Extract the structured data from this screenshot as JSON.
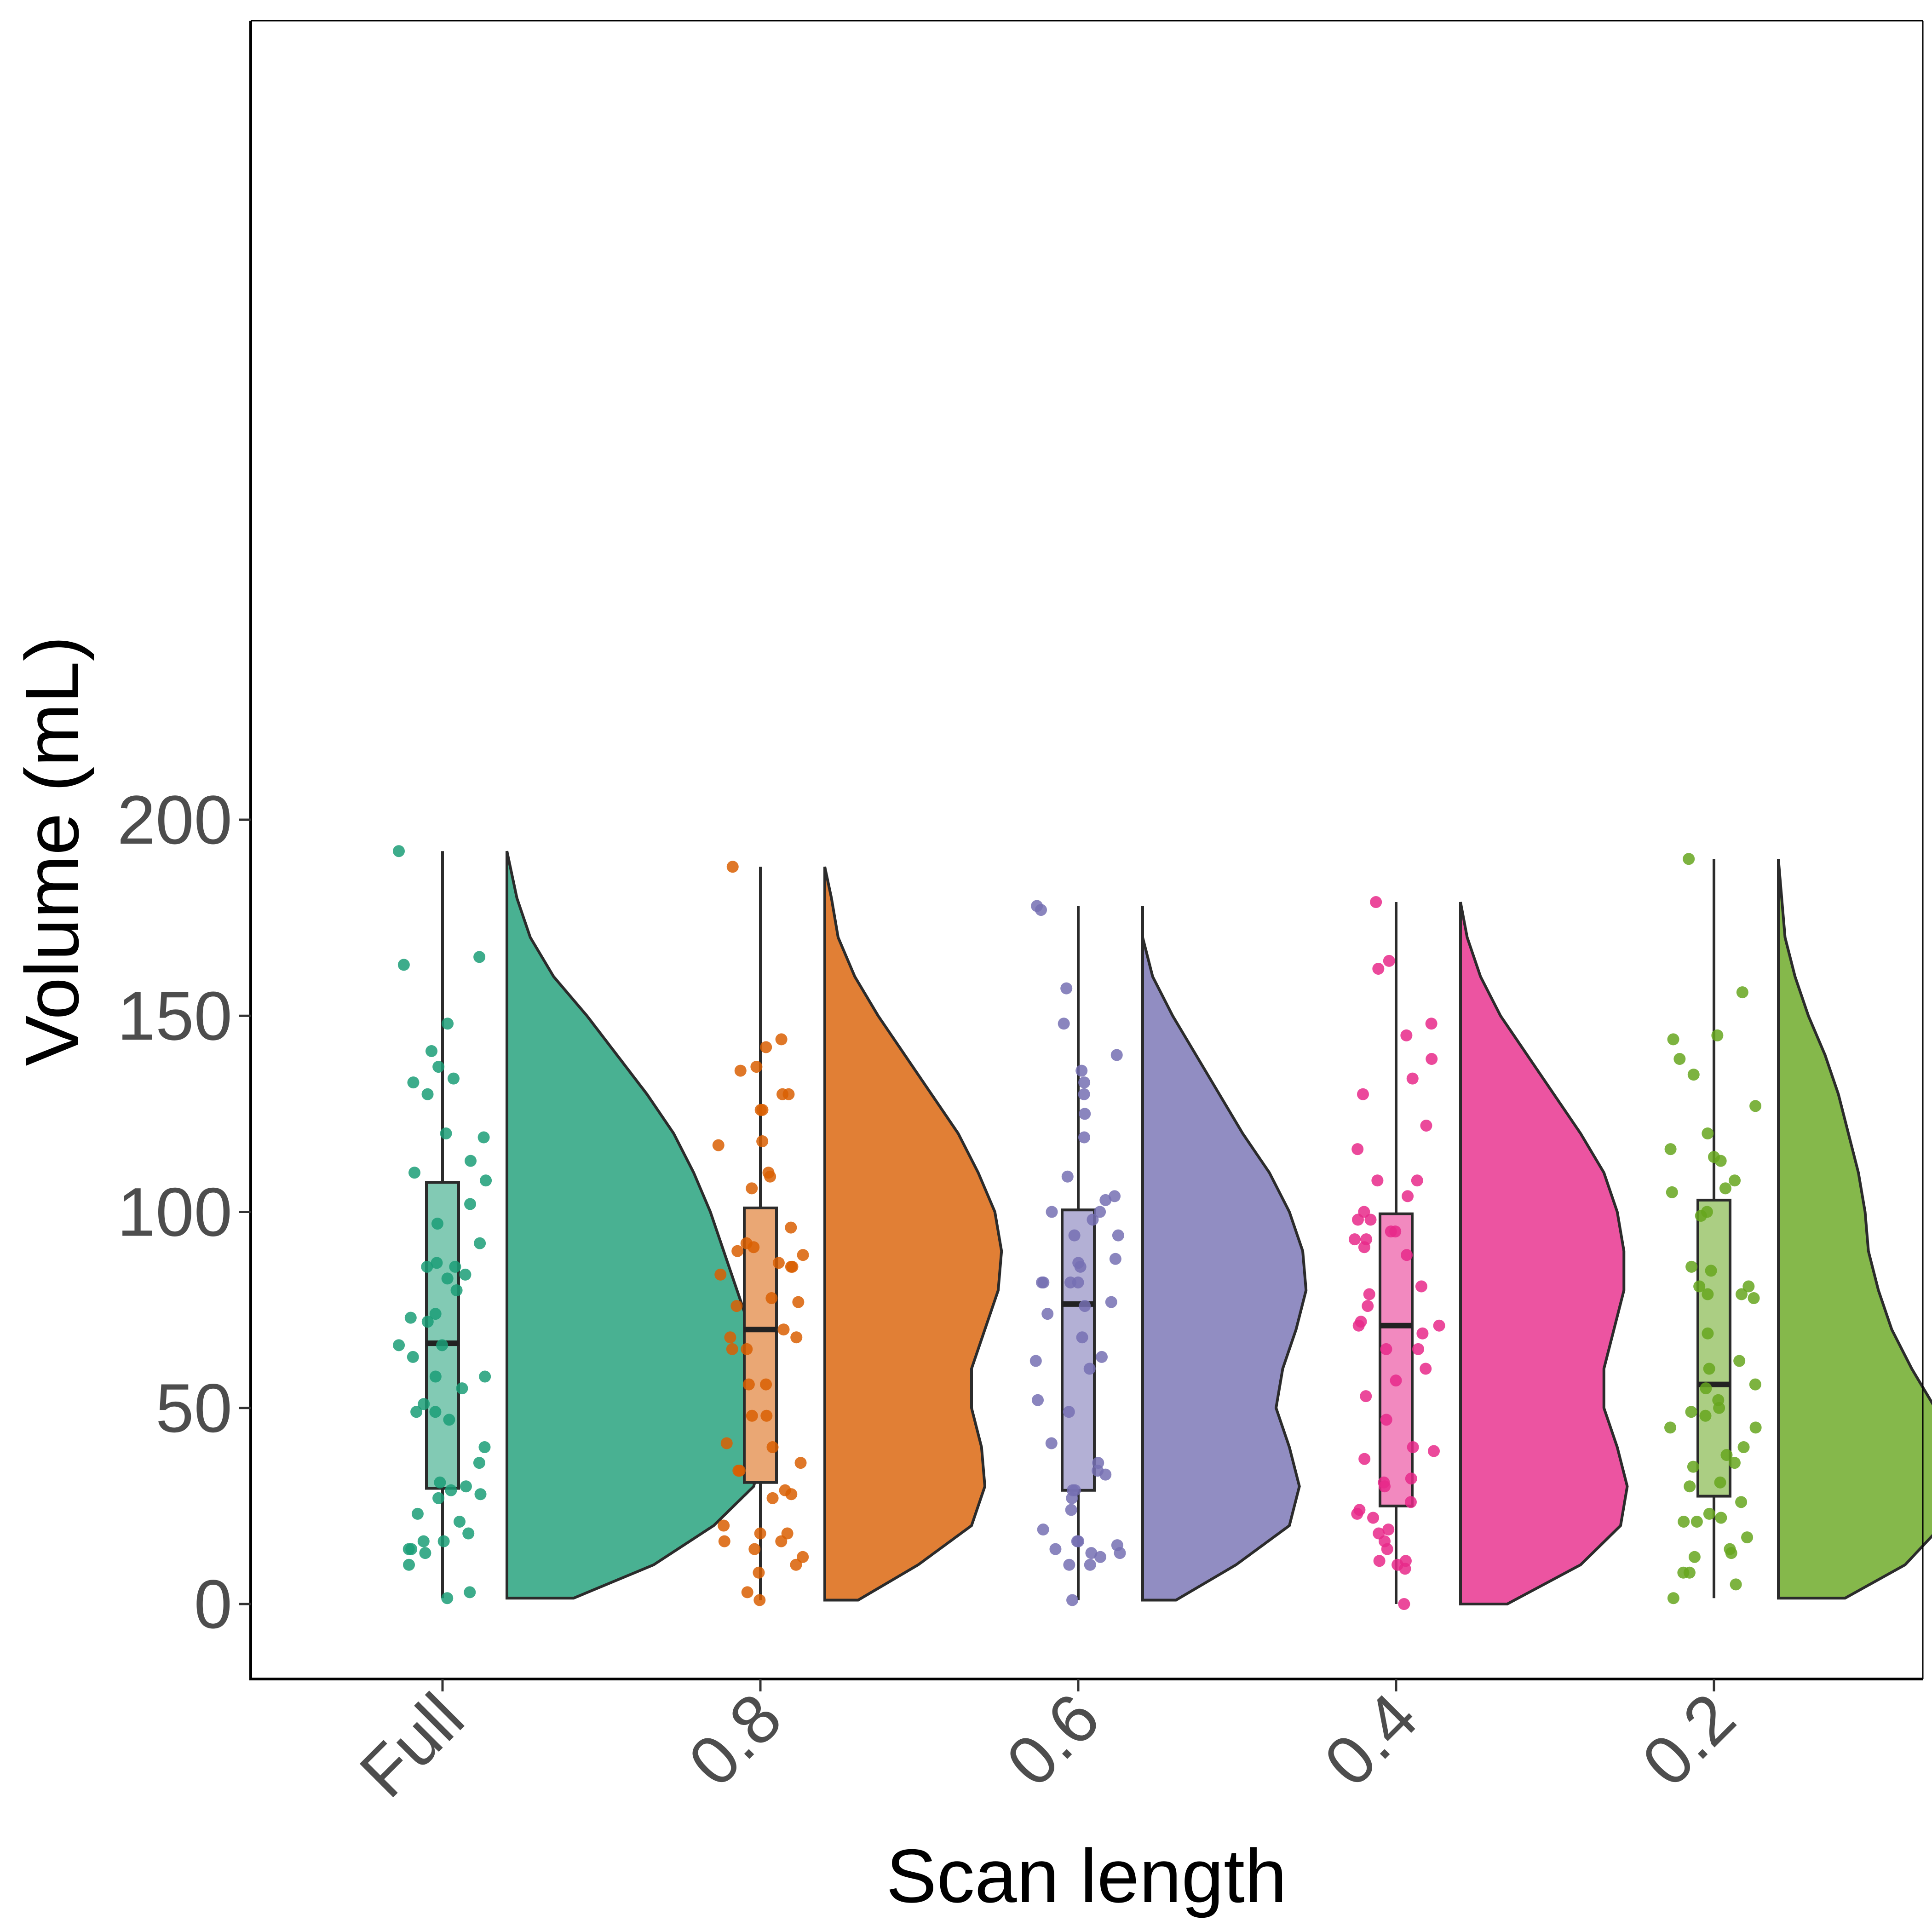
{
  "chart_data": {
    "type": "raincloud",
    "xlabel": "Scan length",
    "ylabel": "Volume (mL)",
    "ylim": [
      -10,
      202
    ],
    "yticks": [
      0,
      50,
      100,
      150,
      200
    ],
    "categories": [
      "Full",
      "0.8",
      "0.6",
      "0.4",
      "0.2"
    ],
    "grid": false,
    "legend": "none",
    "series": [
      {
        "category": "Full",
        "color": "#1b9e77",
        "box": {
          "min": 1.5,
          "q1": 29.5,
          "median": 66.5,
          "q3": 107.5,
          "max": 192
        },
        "points": [
          192,
          165,
          163,
          148,
          141,
          137,
          134,
          133,
          130,
          120,
          119,
          113,
          110,
          108,
          102,
          97,
          92,
          87,
          86,
          86,
          84,
          83,
          80,
          74,
          73,
          72,
          66,
          66,
          63,
          58,
          58,
          55,
          51,
          49,
          49,
          47,
          40,
          36,
          31,
          30,
          29,
          28,
          27,
          23,
          21,
          18,
          16,
          16,
          14,
          14,
          13,
          10,
          3,
          1.5
        ],
        "density": [
          [
            1.5,
            0.1
          ],
          [
            10,
            0.22
          ],
          [
            20,
            0.31
          ],
          [
            30,
            0.37
          ],
          [
            40,
            0.385
          ],
          [
            50,
            0.375
          ],
          [
            60,
            0.37
          ],
          [
            70,
            0.365
          ],
          [
            80,
            0.345
          ],
          [
            90,
            0.325
          ],
          [
            100,
            0.305
          ],
          [
            110,
            0.28
          ],
          [
            120,
            0.25
          ],
          [
            130,
            0.21
          ],
          [
            140,
            0.165
          ],
          [
            150,
            0.12
          ],
          [
            160,
            0.07
          ],
          [
            170,
            0.035
          ],
          [
            180,
            0.015
          ],
          [
            192,
            0.0
          ]
        ]
      },
      {
        "category": "0.8",
        "color": "#d95f02",
        "box": {
          "min": 1,
          "q1": 31,
          "median": 70,
          "q3": 101,
          "max": 188
        },
        "points": [
          188,
          144,
          142,
          137,
          136,
          130,
          130,
          126,
          126,
          118,
          117,
          110,
          109,
          106,
          96,
          92,
          91,
          90,
          89,
          87,
          86,
          86,
          84,
          78,
          77,
          76,
          70,
          68,
          68,
          65,
          65,
          56,
          56,
          48,
          48,
          41,
          40,
          36,
          34,
          34,
          29,
          28,
          27,
          20,
          18,
          18,
          16,
          16,
          14,
          12,
          10,
          8,
          3,
          1
        ],
        "density": [
          [
            1,
            0.05
          ],
          [
            10,
            0.14
          ],
          [
            20,
            0.22
          ],
          [
            30,
            0.24
          ],
          [
            40,
            0.235
          ],
          [
            50,
            0.22
          ],
          [
            60,
            0.22
          ],
          [
            70,
            0.24
          ],
          [
            80,
            0.26
          ],
          [
            90,
            0.265
          ],
          [
            100,
            0.255
          ],
          [
            110,
            0.23
          ],
          [
            120,
            0.2
          ],
          [
            130,
            0.16
          ],
          [
            140,
            0.12
          ],
          [
            150,
            0.08
          ],
          [
            160,
            0.045
          ],
          [
            170,
            0.02
          ],
          [
            180,
            0.01
          ],
          [
            188,
            0.0
          ]
        ]
      },
      {
        "category": "0.6",
        "color": "#7570b3",
        "box": {
          "min": 1,
          "q1": 29,
          "median": 76.5,
          "q3": 100.5,
          "max": 178
        },
        "points": [
          178,
          177,
          157,
          148,
          140,
          136,
          133,
          130,
          125,
          119,
          109,
          104,
          103,
          100,
          100,
          98,
          94,
          94,
          88,
          87,
          86,
          82,
          82,
          82,
          82,
          77,
          76,
          74,
          68,
          63,
          62,
          60,
          52,
          49,
          41,
          36,
          34,
          33,
          29,
          29,
          27,
          24,
          19,
          16,
          16,
          15,
          14,
          13,
          13,
          12,
          10,
          10,
          1
        ],
        "density": [
          [
            1,
            0.05
          ],
          [
            10,
            0.14
          ],
          [
            20,
            0.22
          ],
          [
            30,
            0.235
          ],
          [
            40,
            0.22
          ],
          [
            50,
            0.2
          ],
          [
            60,
            0.21
          ],
          [
            70,
            0.23
          ],
          [
            80,
            0.245
          ],
          [
            90,
            0.24
          ],
          [
            100,
            0.22
          ],
          [
            110,
            0.19
          ],
          [
            120,
            0.15
          ],
          [
            130,
            0.115
          ],
          [
            140,
            0.08
          ],
          [
            150,
            0.045
          ],
          [
            160,
            0.015
          ],
          [
            170,
            0.0
          ],
          [
            178,
            0.0
          ]
        ]
      },
      {
        "category": "0.4",
        "color": "#e7298a",
        "box": {
          "min": 0,
          "q1": 25,
          "median": 71,
          "q3": 99.5,
          "max": 179
        },
        "points": [
          179,
          164,
          162,
          148,
          145,
          139,
          134,
          130,
          122,
          116,
          108,
          108,
          104,
          100,
          98,
          98,
          95,
          95,
          93,
          93,
          91,
          89,
          81,
          79,
          76,
          72,
          71,
          71,
          69,
          65,
          65,
          60,
          57,
          53,
          47,
          40,
          39,
          37,
          32,
          31,
          30,
          26,
          24,
          23,
          22,
          19,
          18,
          16,
          14,
          11,
          11,
          10,
          9,
          0
        ],
        "density": [
          [
            0,
            0.07
          ],
          [
            10,
            0.18
          ],
          [
            20,
            0.24
          ],
          [
            30,
            0.25
          ],
          [
            40,
            0.235
          ],
          [
            50,
            0.215
          ],
          [
            60,
            0.215
          ],
          [
            70,
            0.23
          ],
          [
            80,
            0.245
          ],
          [
            90,
            0.245
          ],
          [
            100,
            0.235
          ],
          [
            110,
            0.215
          ],
          [
            120,
            0.18
          ],
          [
            130,
            0.14
          ],
          [
            140,
            0.1
          ],
          [
            150,
            0.06
          ],
          [
            160,
            0.03
          ],
          [
            170,
            0.01
          ],
          [
            179,
            0.0
          ]
        ]
      },
      {
        "category": "0.2",
        "color": "#66a61e",
        "box": {
          "min": 1.5,
          "q1": 27.5,
          "median": 56,
          "q3": 103,
          "max": 190
        },
        "points": [
          190,
          156,
          145,
          144,
          139,
          135,
          127,
          120,
          116,
          114,
          113,
          108,
          106,
          105,
          100,
          99,
          86,
          85,
          81,
          81,
          79,
          79,
          78,
          69,
          62,
          60,
          56,
          55,
          52,
          50,
          49,
          48,
          45,
          45,
          40,
          38,
          36,
          35,
          31,
          30,
          26,
          23,
          22,
          21,
          21,
          17,
          14,
          13,
          12,
          8,
          8,
          5,
          1.5
        ],
        "density": [
          [
            1.5,
            0.1
          ],
          [
            10,
            0.19
          ],
          [
            20,
            0.245
          ],
          [
            30,
            0.265
          ],
          [
            40,
            0.255
          ],
          [
            50,
            0.235
          ],
          [
            60,
            0.2
          ],
          [
            70,
            0.17
          ],
          [
            80,
            0.15
          ],
          [
            90,
            0.135
          ],
          [
            100,
            0.13
          ],
          [
            110,
            0.12
          ],
          [
            120,
            0.105
          ],
          [
            130,
            0.09
          ],
          [
            140,
            0.07
          ],
          [
            150,
            0.045
          ],
          [
            160,
            0.025
          ],
          [
            170,
            0.01
          ],
          [
            180,
            0.005
          ],
          [
            190,
            0.0
          ]
        ]
      }
    ]
  }
}
